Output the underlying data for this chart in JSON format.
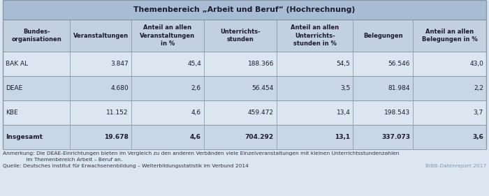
{
  "title": "Themenbereich „Arbeit und Beruf“ (Hochrechnung)",
  "col_headers": [
    "Bundes-\norganisationen",
    "Veranstaltungen",
    "Anteil an allen\nVeranstaltungen\nin %",
    "Unterrichts-\nstunden",
    "Anteil an allen\nUnterrichts-\nstunden in %",
    "Belegungen",
    "Anteil an allen\nBelegungen in %"
  ],
  "rows": [
    [
      "BAK AL",
      "3.847",
      "45,4",
      "188.366",
      "54,5",
      "56.546",
      "43,0"
    ],
    [
      "DEAE",
      "4.680",
      "2,6",
      "56.454",
      "3,5",
      "81.984",
      "2,2"
    ],
    [
      "KBE",
      "11.152",
      "4,6",
      "459.472",
      "13,4",
      "198.543",
      "3,7"
    ],
    [
      "Insgesamt",
      "19.678",
      "4,6",
      "704.292",
      "13,1",
      "337.073",
      "3,6"
    ]
  ],
  "note_line1": "Anmerkung: Die DEAE-Einrichtungen bieten im Vergleich zu den anderen Verbänden viele Einzelveranstaltungen mit kleinen Unterrichtsstundenzahlen",
  "note_line2": "              im Themenbereich Arbeit – Beruf an.",
  "source": "Quelle: Deutsches Institut für Erwachsenenbildung – Weiterbildungsstatistik im Verbund 2014",
  "bibb": "BIBB-Datenreport 2017",
  "title_bg": "#a8bcd4",
  "header_bg": "#c2d0e0",
  "row_bg_light": "#dce6f0",
  "row_bg_mid": "#c8d6e6",
  "border_color": "#8899aa",
  "text_color": "#1a1a2e",
  "note_color": "#333344",
  "bibb_color": "#8899aa",
  "fig_bg": "#dce6f0"
}
